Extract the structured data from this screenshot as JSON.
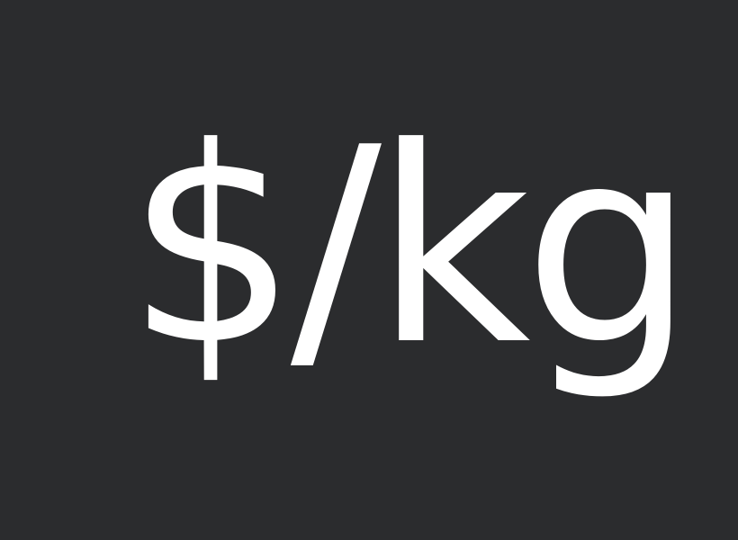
{
  "unit_text": "$/kg",
  "colors": {
    "background": "#2b2c2e",
    "text": "#ffffff"
  }
}
